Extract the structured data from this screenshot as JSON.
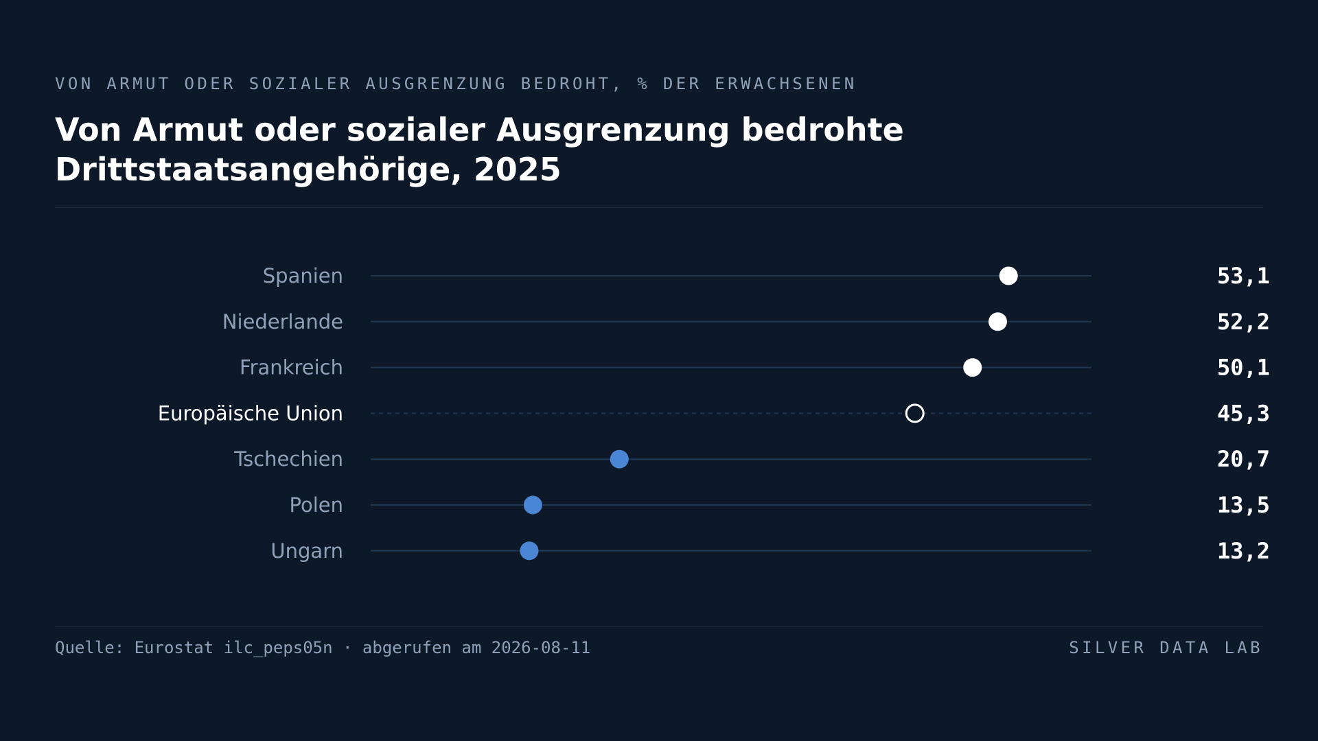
{
  "header": {
    "kicker": "VON ARMUT ODER SOZIALER AUSGRENZUNG BEDROHT, % DER ERWACHSENEN",
    "title": "Von Armut oder sozialer Ausgrenzung bedrohte Drittstaatsangehörige, 2025"
  },
  "chart_data": {
    "type": "scatter",
    "subtype": "dot-plot",
    "xlim": [
      0,
      60
    ],
    "grid": false,
    "legend": "none",
    "categories": [
      "Spanien",
      "Niederlande",
      "Frankreich",
      "Europäische Union",
      "Tschechien",
      "Polen",
      "Ungarn"
    ],
    "values": [
      53.1,
      52.2,
      50.1,
      45.3,
      20.7,
      13.5,
      13.2
    ],
    "value_labels": [
      "53,1",
      "52,2",
      "50,1",
      "45,3",
      "20,7",
      "13,5",
      "13,2"
    ],
    "highlight": [
      "high",
      "high",
      "high",
      "reference",
      "low",
      "low",
      "low"
    ],
    "colors": {
      "high": "#ffffff",
      "low": "#4a86d4",
      "reference": "#ffffff",
      "track": "#1f3550",
      "label": "#8fa0b8",
      "reference_label": "#ffffff",
      "value": "#ffffff"
    }
  },
  "footer": {
    "source": "Quelle: Eurostat ilc_peps05n · abgerufen am 2026-08-11",
    "brand": "SILVER DATA LAB"
  }
}
